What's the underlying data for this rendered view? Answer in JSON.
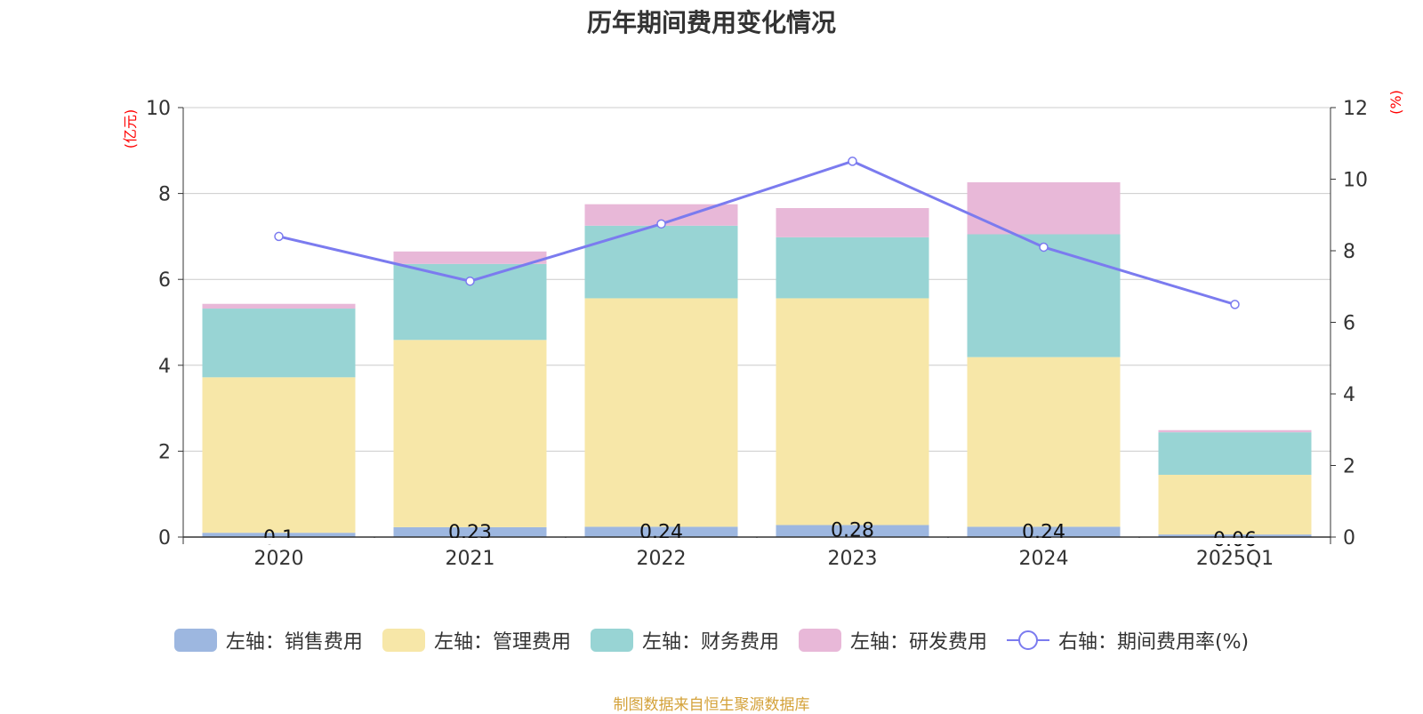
{
  "chart_data": {
    "type": "bar",
    "title": "历年期间费用变化情况",
    "categories": [
      "2020",
      "2021",
      "2022",
      "2023",
      "2024",
      "2025Q1"
    ],
    "stacked": true,
    "left_axis": {
      "label": "(亿元)",
      "ylim": [
        0,
        10
      ],
      "ticks": [
        0,
        2,
        4,
        6,
        8,
        10
      ]
    },
    "right_axis": {
      "label": "(%)",
      "ylim": [
        0,
        12
      ],
      "ticks": [
        0,
        2,
        4,
        6,
        8,
        10,
        12
      ]
    },
    "series": [
      {
        "name": "左轴：销售费用",
        "axis": "left",
        "type": "bar",
        "color": "#9DB7E0",
        "values": [
          0.1,
          0.23,
          0.24,
          0.28,
          0.24,
          0.06
        ],
        "data_labels": [
          "0.1",
          "0.23",
          "0.24",
          "0.28",
          "0.24",
          "0.06"
        ]
      },
      {
        "name": "左轴：管理费用",
        "axis": "left",
        "type": "bar",
        "color": "#F7E7A8",
        "values": [
          3.62,
          4.36,
          5.32,
          5.28,
          3.95,
          1.39
        ]
      },
      {
        "name": "左轴：财务费用",
        "axis": "left",
        "type": "bar",
        "color": "#98D4D4",
        "values": [
          1.6,
          1.77,
          1.69,
          1.42,
          2.86,
          0.99
        ]
      },
      {
        "name": "左轴：研发费用",
        "axis": "left",
        "type": "bar",
        "color": "#E8B8D8",
        "values": [
          0.11,
          0.29,
          0.5,
          0.68,
          1.21,
          0.05
        ]
      },
      {
        "name": "右轴：期间费用率(%)",
        "axis": "right",
        "type": "line",
        "color": "#7B7BEF",
        "values": [
          8.4,
          7.15,
          8.75,
          10.5,
          8.1,
          6.5
        ]
      }
    ],
    "legend_position": "bottom",
    "grid": true
  },
  "footer": {
    "text": "制图数据来自恒生聚源数据库",
    "color": "#D4A23A"
  },
  "axis_label_color": "#FF0000"
}
